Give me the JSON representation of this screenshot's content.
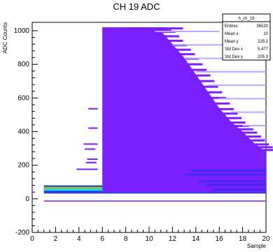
{
  "chart_data": {
    "type": "heatmap",
    "title": "CH 19 ADC",
    "xlabel": "Sample",
    "ylabel": "ADC Counts",
    "xlim": [
      0,
      20
    ],
    "ylim": [
      -200,
      1050
    ],
    "x_ticks": [
      0,
      2,
      4,
      6,
      8,
      10,
      12,
      14,
      16,
      18,
      20
    ],
    "y_ticks": [
      -200,
      0,
      200,
      400,
      600,
      800,
      1000
    ],
    "x_tick_labels": [
      "0",
      "2",
      "4",
      "6",
      "8",
      "10",
      "12",
      "14",
      "16",
      "18",
      "20"
    ],
    "y_tick_labels": [
      "-200",
      "0",
      "200",
      "400",
      "600",
      "800",
      "1000"
    ],
    "grid": false,
    "colors": {
      "main": "#7a1fff",
      "light": "#b9a6ff",
      "cyan": "#19d8ff",
      "green": "#86c62a",
      "blue": "#2230e0"
    },
    "stats_box": {
      "title": "h_ch_19",
      "rows": [
        {
          "label": "Entries",
          "value": "36520"
        },
        {
          "label": "Mean x",
          "value": "10"
        },
        {
          "label": "Mean y",
          "value": "225.2"
        },
        {
          "label": "Std Dev x",
          "value": "5.477"
        },
        {
          "label": "Std Dev y",
          "value": "205.3"
        }
      ]
    },
    "baseline": {
      "x": [
        1,
        6
      ],
      "y": [
        40,
        80
      ]
    },
    "envelope_upper": [
      {
        "x": 6,
        "y": 1020
      },
      {
        "x": 10,
        "y": 1020
      },
      {
        "x": 11,
        "y": 1000
      },
      {
        "x": 12,
        "y": 920
      },
      {
        "x": 13,
        "y": 840
      },
      {
        "x": 14,
        "y": 740
      },
      {
        "x": 15,
        "y": 640
      },
      {
        "x": 16,
        "y": 540
      },
      {
        "x": 17,
        "y": 460
      },
      {
        "x": 18,
        "y": 400
      },
      {
        "x": 19,
        "y": 330
      },
      {
        "x": 20,
        "y": 280
      }
    ]
  }
}
